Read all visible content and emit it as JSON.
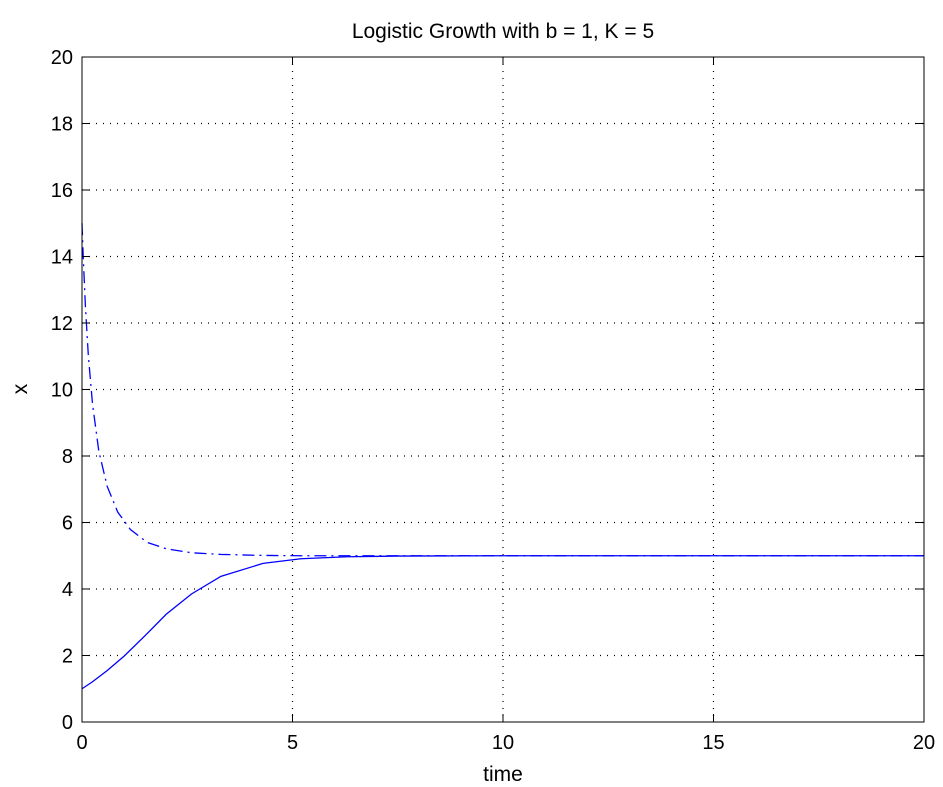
{
  "chart_data": {
    "type": "line",
    "title": "Logistic Growth with b = 1, K = 5",
    "xlabel": "time",
    "ylabel": "x",
    "xlim": [
      0,
      20
    ],
    "ylim": [
      0,
      20
    ],
    "xticks": [
      0,
      5,
      10,
      15,
      20
    ],
    "yticks": [
      0,
      2,
      4,
      6,
      8,
      10,
      12,
      14,
      16,
      18,
      20
    ],
    "grid": true,
    "line_color": "#0000ff",
    "series": [
      {
        "style": "solid",
        "x": [
          0,
          0.25,
          0.6,
          1.0,
          1.5,
          2.0,
          2.6,
          3.3,
          4.3,
          5.2,
          6.3,
          7.5,
          10,
          15,
          20
        ],
        "y": [
          1.0,
          1.21,
          1.55,
          1.98,
          2.6,
          3.24,
          3.85,
          4.38,
          4.77,
          4.91,
          4.97,
          4.99,
          5.0,
          5.0,
          5.0
        ]
      },
      {
        "style": "dashdot",
        "x": [
          0,
          0.03,
          0.08,
          0.15,
          0.25,
          0.4,
          0.6,
          0.85,
          1.15,
          1.55,
          2.0,
          2.6,
          3.3,
          4.3,
          5.2,
          6.5,
          8,
          10,
          15,
          20
        ],
        "y": [
          15.0,
          13.96,
          12.53,
          11.03,
          9.56,
          8.14,
          7.08,
          6.31,
          5.79,
          5.4,
          5.21,
          5.09,
          5.04,
          5.01,
          5.0,
          5.0,
          5.0,
          5.0,
          5.0,
          5.0
        ]
      }
    ]
  }
}
